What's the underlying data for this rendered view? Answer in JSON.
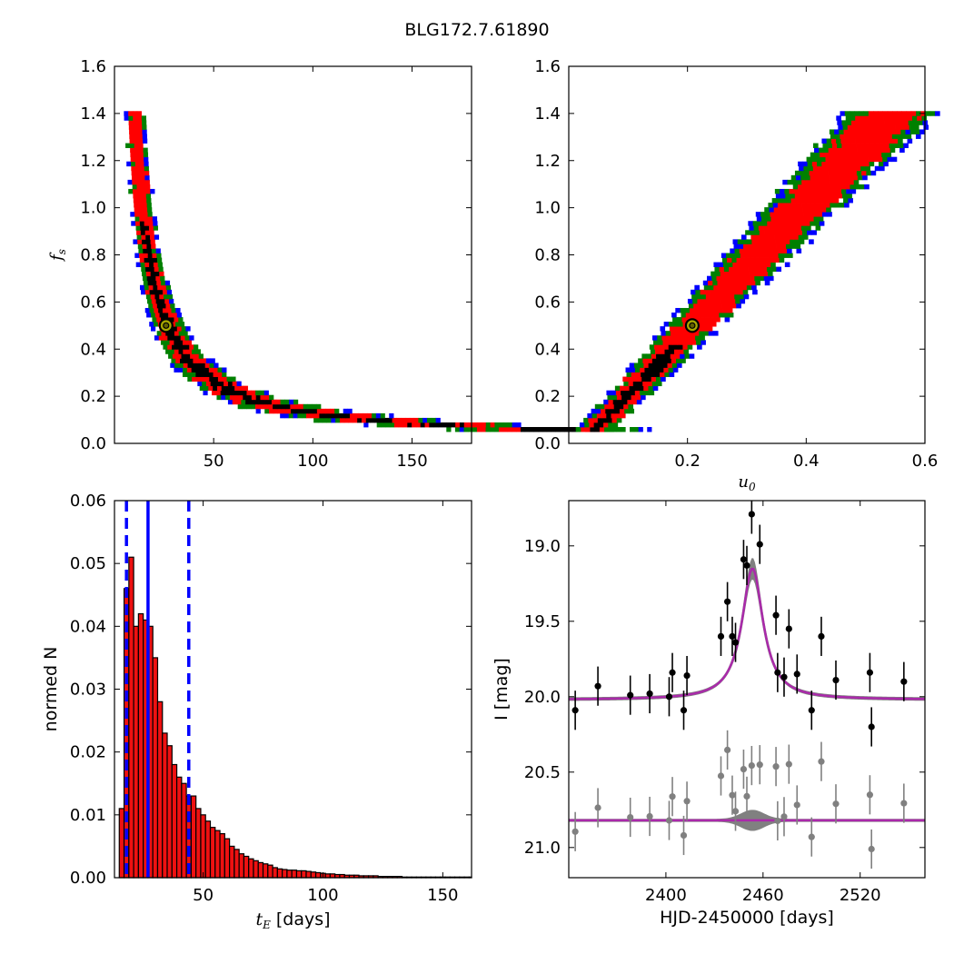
{
  "title": "BLG172.7.61890",
  "colors": {
    "level1": "#000000",
    "level2": "#ff0000",
    "level3": "#008000",
    "level4": "#0000ff",
    "model": "#aa2aaa",
    "band": "#808080",
    "bar": "#ee1111",
    "marker_fill": "#a8a800"
  },
  "chart_data": [
    {
      "id": "tE_vs_fs",
      "type": "heatmap",
      "xlabel": "",
      "ylabel": "f_s",
      "xlim": [
        0,
        180
      ],
      "ylim": [
        0.0,
        1.6
      ],
      "xticks": [
        50,
        100,
        150
      ],
      "yticks": [
        0.0,
        0.2,
        0.4,
        0.6,
        0.8,
        1.0,
        1.2,
        1.4,
        1.6
      ],
      "levels": [
        "black",
        "red",
        "green",
        "blue"
      ],
      "relation": "tE * fs ≈ 13",
      "best_fit": {
        "x": 26,
        "y": 0.5
      },
      "fs_range": [
        0.05,
        1.41
      ]
    },
    {
      "id": "u0_vs_fs",
      "type": "heatmap",
      "xlabel": "u_0",
      "ylabel": "",
      "xlim": [
        0.0,
        0.6
      ],
      "ylim": [
        0.0,
        1.6
      ],
      "xticks": [
        0.2,
        0.4,
        0.6
      ],
      "yticks": [
        0.0,
        0.2,
        0.4,
        0.6,
        0.8,
        1.0,
        1.2,
        1.4,
        1.6
      ],
      "levels": [
        "black",
        "red",
        "green",
        "blue"
      ],
      "relation": "u0 ≈ 0.02 + 0.37 * fs",
      "best_fit": {
        "x": 0.208,
        "y": 0.5
      },
      "fs_range": [
        0.05,
        1.41
      ]
    },
    {
      "id": "tE_histogram",
      "type": "bar",
      "xlabel": "t_E [days]",
      "ylabel": "normed N",
      "xlim": [
        13,
        162
      ],
      "ylim": [
        0.0,
        0.06
      ],
      "xticks": [
        50,
        100,
        150
      ],
      "yticks": [
        0.0,
        0.01,
        0.02,
        0.03,
        0.04,
        0.05,
        0.06
      ],
      "bin_start": 15,
      "bin_width": 2,
      "values": [
        0.011,
        0.046,
        0.051,
        0.04,
        0.042,
        0.041,
        0.04,
        0.035,
        0.028,
        0.023,
        0.021,
        0.018,
        0.016,
        0.015,
        0.013,
        0.013,
        0.011,
        0.01,
        0.009,
        0.008,
        0.0075,
        0.007,
        0.0062,
        0.005,
        0.0045,
        0.0038,
        0.0034,
        0.003,
        0.0027,
        0.0024,
        0.0022,
        0.002,
        0.0016,
        0.0014,
        0.0013,
        0.0012,
        0.0012,
        0.0011,
        0.0011,
        0.001,
        0.0009,
        0.0008,
        0.0007,
        0.0006,
        0.0006,
        0.0005,
        0.0005,
        0.0004,
        0.0004,
        0.0004,
        0.0003,
        0.0003,
        0.0003,
        0.0003,
        0.0002,
        0.0002,
        0.0002,
        0.0002,
        0.0002,
        0.0001,
        0.0001,
        0.0001,
        0.0001,
        0.0001,
        0.0001,
        0.0001,
        0.0001,
        0.0001,
        0.0001,
        0.0001,
        0.0001,
        0.0001,
        0.0001,
        0.0001
      ],
      "median": 27,
      "interval": [
        18,
        44
      ]
    },
    {
      "id": "light_curve",
      "type": "scatter",
      "xlabel": "HJD-2450000 [days]",
      "ylabel": "I [mag]",
      "xlim": [
        2340,
        2560
      ],
      "ylim": [
        21.2,
        18.7
      ],
      "xticks": [
        2400,
        2460,
        2520
      ],
      "yticks": [
        19.0,
        19.5,
        20.0,
        20.5,
        21.0
      ],
      "model": {
        "t0": 2453.5,
        "baseline": 20.02,
        "peak": 19.15,
        "width": 8
      },
      "residual_offset": 20.82,
      "points": [
        {
          "x": 2344,
          "y": 20.09,
          "err": 0.13
        },
        {
          "x": 2358,
          "y": 19.93,
          "err": 0.13
        },
        {
          "x": 2378,
          "y": 19.99,
          "err": 0.13
        },
        {
          "x": 2390,
          "y": 19.98,
          "err": 0.13
        },
        {
          "x": 2402,
          "y": 20.0,
          "err": 0.13
        },
        {
          "x": 2404,
          "y": 19.84,
          "err": 0.13
        },
        {
          "x": 2411,
          "y": 20.09,
          "err": 0.13
        },
        {
          "x": 2413,
          "y": 19.86,
          "err": 0.13
        },
        {
          "x": 2434,
          "y": 19.6,
          "err": 0.13
        },
        {
          "x": 2438,
          "y": 19.37,
          "err": 0.13
        },
        {
          "x": 2441,
          "y": 19.6,
          "err": 0.13
        },
        {
          "x": 2443,
          "y": 19.64,
          "err": 0.13
        },
        {
          "x": 2448,
          "y": 19.09,
          "err": 0.13
        },
        {
          "x": 2450,
          "y": 19.13,
          "err": 0.13
        },
        {
          "x": 2453,
          "y": 18.79,
          "err": 0.13
        },
        {
          "x": 2458,
          "y": 18.99,
          "err": 0.13
        },
        {
          "x": 2468,
          "y": 19.46,
          "err": 0.13
        },
        {
          "x": 2469,
          "y": 19.84,
          "err": 0.13
        },
        {
          "x": 2473,
          "y": 19.87,
          "err": 0.13
        },
        {
          "x": 2476,
          "y": 19.55,
          "err": 0.13
        },
        {
          "x": 2481,
          "y": 19.85,
          "err": 0.13
        },
        {
          "x": 2490,
          "y": 20.09,
          "err": 0.13
        },
        {
          "x": 2496,
          "y": 19.6,
          "err": 0.13
        },
        {
          "x": 2505,
          "y": 19.89,
          "err": 0.13
        },
        {
          "x": 2526,
          "y": 19.84,
          "err": 0.13
        },
        {
          "x": 2527,
          "y": 20.2,
          "err": 0.13
        },
        {
          "x": 2547,
          "y": 19.9,
          "err": 0.13
        }
      ]
    }
  ]
}
